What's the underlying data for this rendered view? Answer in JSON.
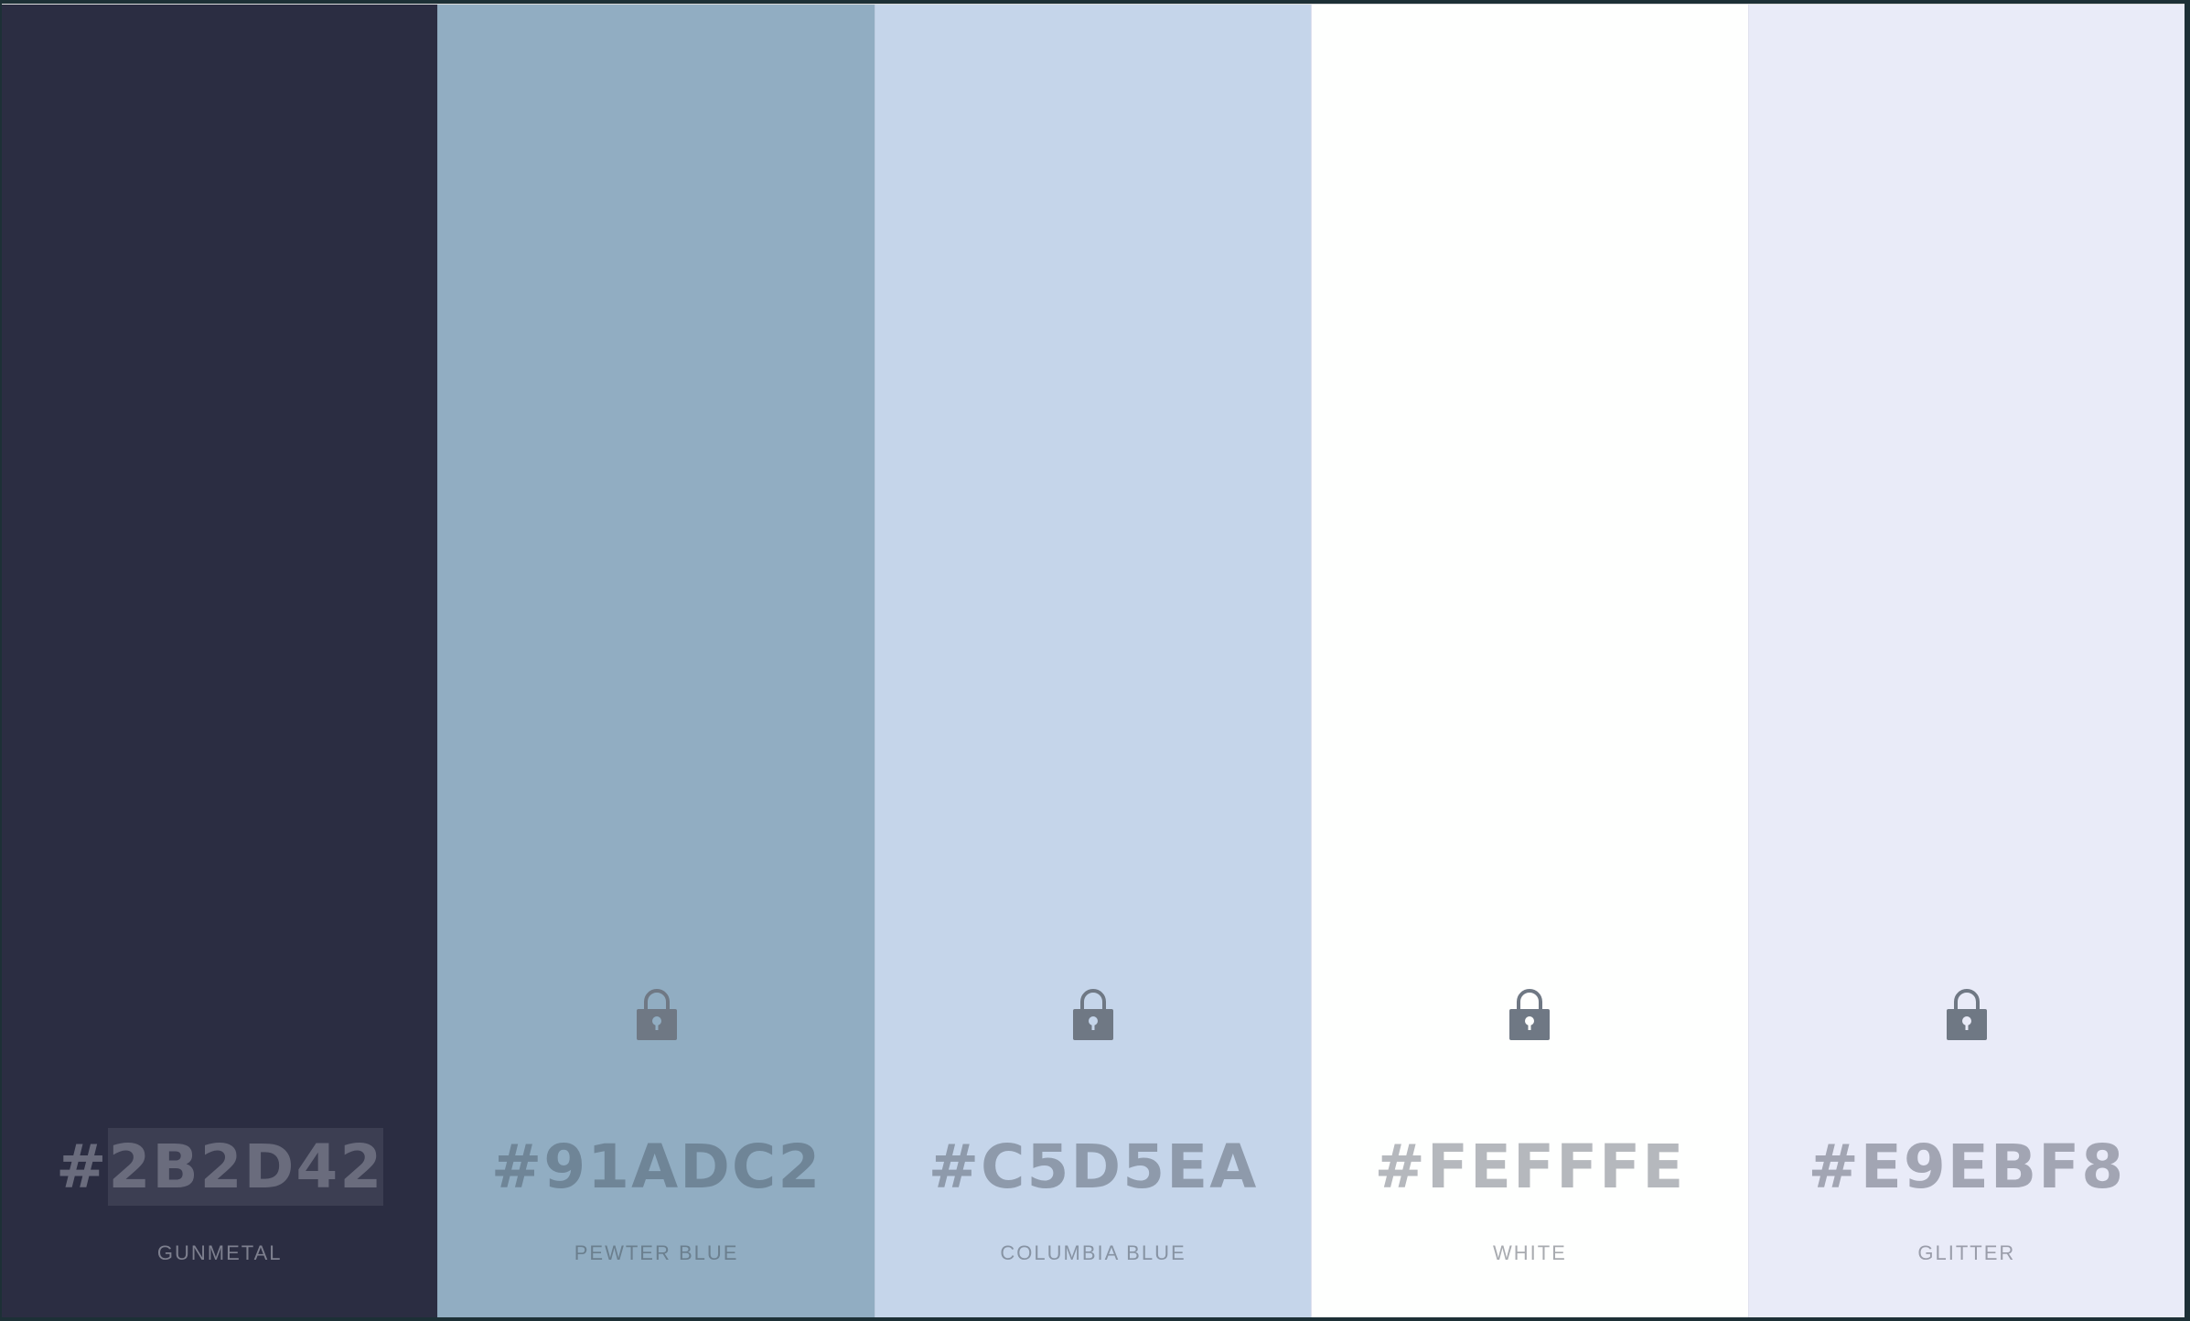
{
  "palette": {
    "colors": [
      {
        "hex_prefix": "#",
        "hex_code": "2B2D42",
        "name": "GUNMETAL",
        "bg": "#2B2D42",
        "hex_color": "#6a6c7d",
        "name_color": "#7e808f",
        "has_lock": false,
        "selected": true
      },
      {
        "hex_prefix": "#",
        "hex_code": "91ADC2",
        "name": "PEWTER BLUE",
        "bg": "#91ADC2",
        "hex_color": "#6f8597",
        "name_color": "#6b7f8e",
        "has_lock": true,
        "selected": false
      },
      {
        "hex_prefix": "#",
        "hex_code": "C5D5EA",
        "name": "COLUMBIA BLUE",
        "bg": "#C5D5EA",
        "hex_color": "#8e9aab",
        "name_color": "#8793a3",
        "has_lock": true,
        "selected": false
      },
      {
        "hex_prefix": "#",
        "hex_code": "FEFFFE",
        "name": "WHITE",
        "bg": "#FEFFFE",
        "hex_color": "#b5b8bd",
        "name_color": "#a8abb0",
        "has_lock": true,
        "selected": false
      },
      {
        "hex_prefix": "#",
        "hex_code": "E9EBF8",
        "name": "GLITTER",
        "bg": "#E9EBF8",
        "hex_color": "#a2a5b3",
        "name_color": "#9a9daa",
        "has_lock": true,
        "selected": false
      }
    ],
    "lock_icon": "lock-icon",
    "lock_color": "#6f7884"
  }
}
